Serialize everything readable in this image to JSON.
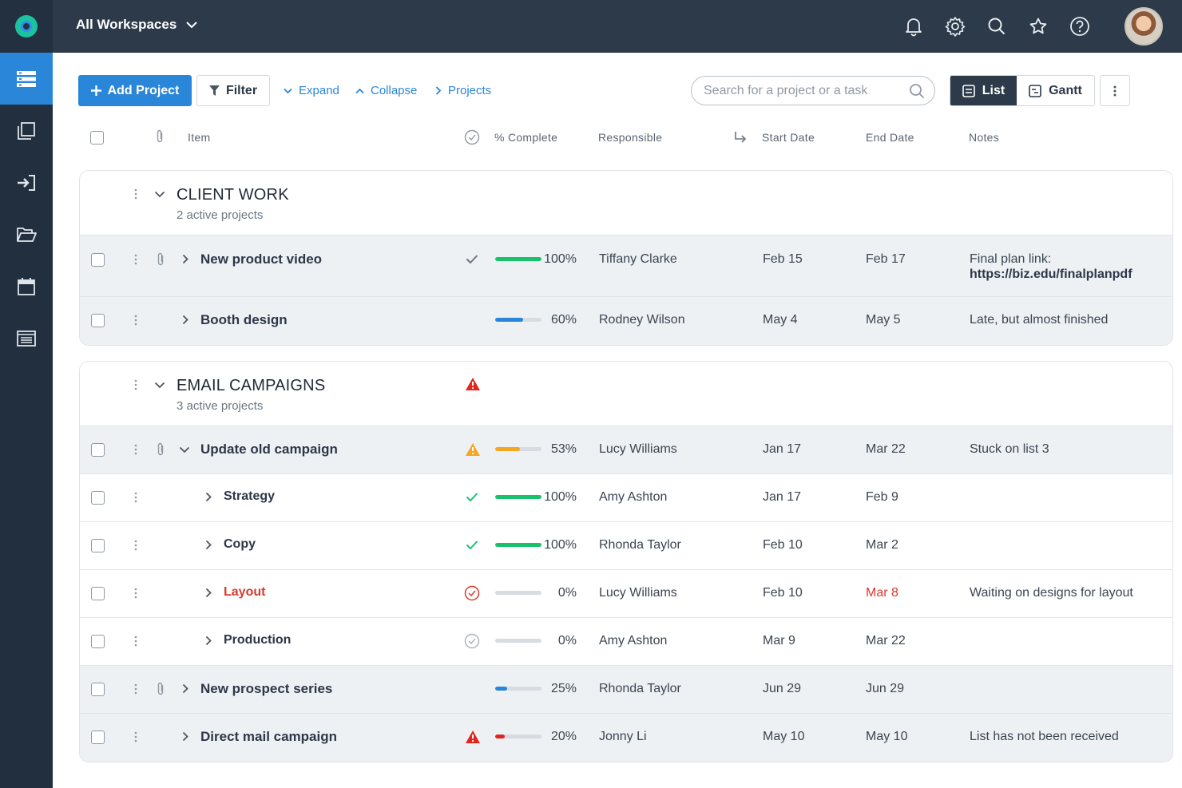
{
  "header": {
    "workspace_label": "All Workspaces"
  },
  "toolbar": {
    "add_project": "Add Project",
    "filter": "Filter",
    "expand": "Expand",
    "collapse": "Collapse",
    "projects": "Projects",
    "search_placeholder": "Search for a project or a task",
    "view_list": "List",
    "view_gantt": "Gantt"
  },
  "columns": {
    "item": "Item",
    "complete": "% Complete",
    "responsible": "Responsible",
    "start": "Start Date",
    "end": "End Date",
    "notes": "Notes"
  },
  "groups": [
    {
      "title": "CLIENT WORK",
      "subtitle": "2 active projects",
      "rows": [
        {
          "name": "New product video",
          "percent": 100,
          "percent_label": "100%",
          "responsible": "Tiffany Clarke",
          "start": "Feb 15",
          "end": "Feb 17",
          "note": "Final plan link:",
          "note_link": "https://biz.edu/finalplanpdf",
          "status": "done",
          "bar_color": "#18c26b"
        },
        {
          "name": "Booth design",
          "percent": 60,
          "percent_label": "60%",
          "responsible": "Rodney Wilson",
          "start": "May 4",
          "end": "May 5",
          "note": "Late, but almost finished",
          "status": "none",
          "bar_color": "#2a86d8"
        }
      ]
    },
    {
      "title": "EMAIL CAMPAIGNS",
      "subtitle": "3 active projects",
      "rows": [
        {
          "name": "Update old campaign",
          "percent": 53,
          "percent_label": "53%",
          "responsible": "Lucy Williams",
          "start": "Jan 17",
          "end": "Mar 22",
          "note": "Stuck on list 3",
          "status": "warning",
          "bar_color": "#f5a623"
        },
        {
          "name": "Strategy",
          "percent": 100,
          "percent_label": "100%",
          "responsible": "Amy Ashton",
          "start": "Jan 17",
          "end": "Feb 9",
          "note": "",
          "status": "done-green",
          "bar_color": "#18c26b"
        },
        {
          "name": "Copy",
          "percent": 100,
          "percent_label": "100%",
          "responsible": "Rhonda Taylor",
          "start": "Feb 10",
          "end": "Mar 2",
          "note": "",
          "status": "done-green",
          "bar_color": "#18c26b"
        },
        {
          "name": "Layout",
          "percent": 0,
          "percent_label": "0%",
          "responsible": "Lucy Williams",
          "start": "Feb 10",
          "end": "Mar 8",
          "note": "Waiting on designs for layout",
          "status": "overdue",
          "bar_color": "#d7dce2"
        },
        {
          "name": "Production",
          "percent": 0,
          "percent_label": "0%",
          "responsible": "Amy Ashton",
          "start": "Mar 9",
          "end": "Mar 22",
          "note": "",
          "status": "pending",
          "bar_color": "#d7dce2"
        },
        {
          "name": "New prospect series",
          "percent": 25,
          "percent_label": "25%",
          "responsible": "Rhonda Taylor",
          "start": "Jun 29",
          "end": "Jun 29",
          "note": "",
          "status": "none",
          "bar_color": "#2a86d8"
        },
        {
          "name": "Direct mail campaign",
          "percent": 20,
          "percent_label": "20%",
          "responsible": "Jonny Li",
          "start": "May 10",
          "end": "May 10",
          "note": "List has not been received",
          "status": "alert",
          "bar_color": "#e0261f"
        }
      ]
    }
  ],
  "colors": {
    "accent": "#2a86d8",
    "topbar": "#2c3a4a",
    "sidebar": "#222f3e",
    "green": "#18c26b",
    "warning": "#f5a623",
    "danger": "#e0261f"
  }
}
